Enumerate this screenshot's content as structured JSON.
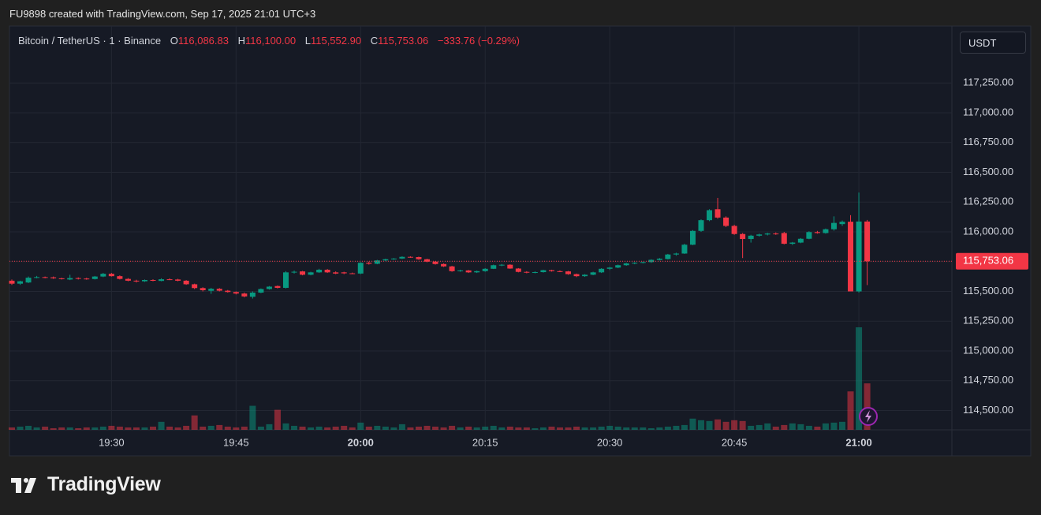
{
  "header": {
    "watermark": "FU9898 created with TradingView.com, Sep 17, 2025 21:01 UTC+3",
    "symbol": "Bitcoin / TetherUS · 1 · Binance",
    "o_label": "O",
    "o": "116,086.83",
    "h_label": "H",
    "h": "116,100.00",
    "l_label": "L",
    "l": "115,552.90",
    "c_label": "C",
    "c": "115,753.06",
    "change": "−333.76 (−0.29%)",
    "currency": "USDT"
  },
  "footer": {
    "logo": "TradingView"
  },
  "chart_data": {
    "type": "candlestick",
    "up_color": "#089981",
    "down_color": "#f23645",
    "grid": true,
    "categories": [
      null,
      null,
      null,
      null,
      null,
      null,
      null,
      null,
      null,
      null,
      null,
      null,
      "19:30",
      null,
      null,
      null,
      null,
      null,
      null,
      null,
      null,
      null,
      null,
      null,
      null,
      null,
      null,
      "19:45",
      null,
      null,
      null,
      null,
      null,
      null,
      null,
      null,
      null,
      null,
      null,
      null,
      null,
      null,
      "20:00",
      null,
      null,
      null,
      null,
      null,
      null,
      null,
      null,
      null,
      null,
      null,
      null,
      null,
      null,
      "20:15",
      null,
      null,
      null,
      null,
      null,
      null,
      null,
      null,
      null,
      null,
      null,
      null,
      null,
      null,
      "20:30",
      null,
      null,
      null,
      null,
      null,
      null,
      null,
      null,
      null,
      null,
      null,
      null,
      null,
      null,
      "20:45",
      null,
      null,
      null,
      null,
      null,
      null,
      null,
      null,
      null,
      null,
      null,
      null,
      null,
      null,
      "21:00",
      null
    ],
    "open": [
      115590,
      115565,
      115575,
      115615,
      115620,
      115618,
      115610,
      115600,
      115612,
      115608,
      115604,
      115625,
      115648,
      115628,
      115605,
      115590,
      115585,
      115596,
      115588,
      115602,
      115600,
      115590,
      115560,
      115528,
      115505,
      115522,
      115506,
      115495,
      115482,
      115455,
      115490,
      115520,
      115545,
      115530,
      115660,
      115668,
      115640,
      115660,
      115682,
      115660,
      115660,
      115652,
      115650,
      115740,
      115732,
      115760,
      115770,
      115776,
      115790,
      115788,
      115770,
      115750,
      115730,
      115710,
      115670,
      115676,
      115660,
      115670,
      115690,
      115720,
      115724,
      115692,
      115664,
      115658,
      115662,
      115678,
      115670,
      115668,
      115645,
      115628,
      115640,
      115660,
      115690,
      115700,
      115720,
      115735,
      115740,
      115746,
      115765,
      115772,
      115810,
      115818,
      115892,
      116008,
      116098,
      116190,
      116120,
      116050,
      115982,
      115940,
      115968,
      115978,
      115986,
      115990,
      115900,
      115910,
      115942,
      115998,
      115990,
      116022,
      116065,
      116085,
      115500,
      116086.83
    ],
    "high": [
      115600,
      115590,
      115625,
      115630,
      115625,
      115625,
      115615,
      115640,
      115618,
      115615,
      115630,
      115655,
      115655,
      115635,
      115612,
      115598,
      115600,
      115602,
      115610,
      115610,
      115606,
      115595,
      115565,
      115535,
      115530,
      115528,
      115512,
      115500,
      115490,
      115500,
      115525,
      115545,
      115550,
      115670,
      115675,
      115672,
      115665,
      115690,
      115688,
      115668,
      115665,
      115658,
      115745,
      115750,
      115765,
      115775,
      115780,
      115795,
      115795,
      115792,
      115775,
      115755,
      115735,
      115715,
      115682,
      115680,
      115675,
      115695,
      115725,
      115730,
      115728,
      115696,
      115670,
      115668,
      115682,
      115682,
      115676,
      115672,
      115650,
      115645,
      115665,
      115695,
      115705,
      115725,
      115740,
      115745,
      115750,
      115770,
      115780,
      115815,
      115825,
      115900,
      116015,
      116105,
      116190,
      116285,
      116130,
      116060,
      115990,
      115975,
      115985,
      115992,
      115995,
      116000,
      115915,
      115948,
      116005,
      116008,
      116028,
      116130,
      116095,
      116140,
      116330,
      116100
    ],
    "low": [
      115555,
      115555,
      115570,
      115610,
      115610,
      115605,
      115600,
      115595,
      115600,
      115598,
      115600,
      115620,
      115625,
      115600,
      115585,
      115575,
      115580,
      115585,
      115585,
      115595,
      115585,
      115555,
      115520,
      115500,
      115480,
      115500,
      115490,
      115475,
      115450,
      115440,
      115485,
      115515,
      115525,
      115525,
      115650,
      115635,
      115635,
      115655,
      115655,
      115645,
      115645,
      115645,
      115645,
      115725,
      115728,
      115755,
      115765,
      115772,
      115782,
      115765,
      115745,
      115725,
      115705,
      115665,
      115665,
      115655,
      115655,
      115665,
      115688,
      115712,
      115690,
      115660,
      115652,
      115652,
      115658,
      115666,
      115662,
      115640,
      115620,
      115622,
      115636,
      115655,
      115680,
      115695,
      115715,
      115728,
      115735,
      115740,
      115760,
      115768,
      115800,
      115815,
      115888,
      116000,
      116090,
      116110,
      116040,
      115975,
      115780,
      115910,
      115960,
      115970,
      115975,
      115895,
      115890,
      115905,
      115938,
      115985,
      115985,
      116010,
      116050,
      115500,
      115490,
      115552.9
    ],
    "close": [
      115565,
      115585,
      115615,
      115620,
      115618,
      115610,
      115605,
      115612,
      115608,
      115604,
      115625,
      115648,
      115628,
      115605,
      115590,
      115585,
      115596,
      115590,
      115602,
      115600,
      115590,
      115560,
      115528,
      115510,
      115522,
      115506,
      115495,
      115482,
      115458,
      115490,
      115520,
      115540,
      115530,
      115660,
      115665,
      115640,
      115660,
      115682,
      115660,
      115650,
      115652,
      115650,
      115740,
      115732,
      115760,
      115770,
      115776,
      115790,
      115788,
      115770,
      115750,
      115730,
      115710,
      115670,
      115676,
      115660,
      115670,
      115690,
      115720,
      115724,
      115692,
      115664,
      115658,
      115662,
      115678,
      115670,
      115668,
      115645,
      115628,
      115640,
      115660,
      115690,
      115700,
      115720,
      115735,
      115740,
      115746,
      115765,
      115775,
      115810,
      115818,
      115892,
      116008,
      116098,
      116182,
      116120,
      116050,
      115982,
      115940,
      115968,
      115978,
      115986,
      115980,
      115900,
      115910,
      115942,
      115998,
      115990,
      116022,
      116075,
      116085,
      115500,
      116086.83,
      115753.06
    ],
    "volume": [
      3,
      4,
      5,
      3,
      4,
      2,
      3,
      3,
      2,
      3,
      3,
      4,
      5,
      4,
      3,
      3,
      3,
      4,
      10,
      4,
      3,
      5,
      18,
      4,
      5,
      6,
      4,
      3,
      4,
      30,
      4,
      7,
      25,
      8,
      5,
      4,
      3,
      4,
      3,
      4,
      5,
      3,
      9,
      4,
      5,
      4,
      3,
      7,
      3,
      4,
      5,
      4,
      3,
      5,
      3,
      4,
      3,
      4,
      5,
      3,
      4,
      3,
      3,
      2,
      3,
      4,
      3,
      3,
      4,
      3,
      3,
      4,
      5,
      4,
      3,
      3,
      3,
      2,
      3,
      4,
      5,
      6,
      14,
      12,
      11,
      13,
      10,
      12,
      11,
      5,
      6,
      8,
      4,
      6,
      8,
      7,
      5,
      4,
      8,
      9,
      10,
      48,
      128,
      58
    ],
    "ylim": [
      114338,
      117728
    ],
    "yticks": [
      {
        "value": 114500,
        "label": "114,500.00"
      },
      {
        "value": 114750,
        "label": "114,750.00"
      },
      {
        "value": 115000,
        "label": "115,000.00"
      },
      {
        "value": 115250,
        "label": "115,250.00"
      },
      {
        "value": 115500,
        "label": "115,500.00"
      },
      {
        "value": 115750,
        "label": "115,750.00"
      },
      {
        "value": 116000,
        "label": "116,000.00"
      },
      {
        "value": 116250,
        "label": "116,250.00"
      },
      {
        "value": 116500,
        "label": "116,500.00"
      },
      {
        "value": 116750,
        "label": "116,750.00"
      },
      {
        "value": 117000,
        "label": "117,000.00"
      },
      {
        "value": 117250,
        "label": "117,250.00"
      }
    ],
    "last_price": {
      "value": 115753.06,
      "label": "115,753.06"
    }
  }
}
